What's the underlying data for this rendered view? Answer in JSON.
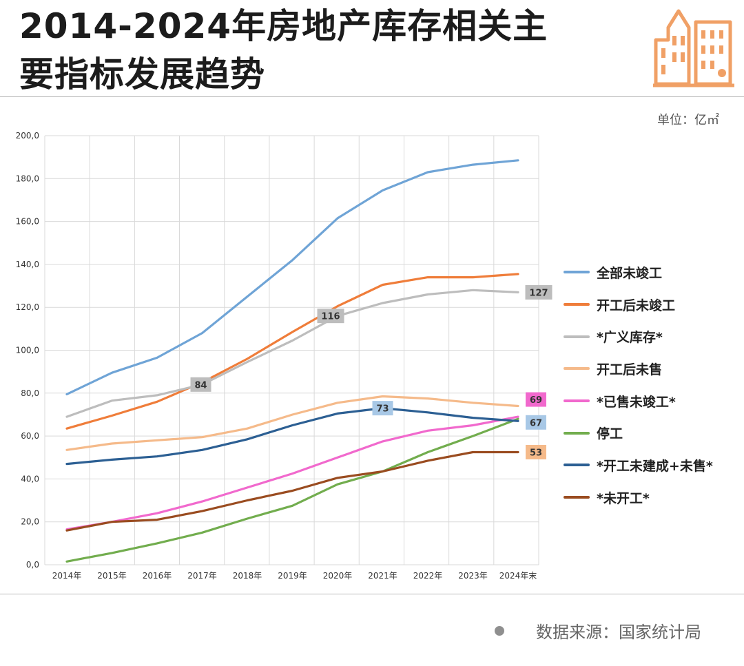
{
  "header": {
    "title_line1": "2014-2024年房地产库存相关主",
    "title_line2": "要指标发展趋势",
    "unit_label": "单位：亿㎡"
  },
  "footer": {
    "source_label": "数据来源：国家统计局"
  },
  "icons": {
    "logo": "building-icon",
    "source_bullet": "dot-icon"
  },
  "colors": {
    "logo": "#f0a066"
  },
  "chart_data": {
    "type": "line",
    "categories": [
      "2014年",
      "2015年",
      "2016年",
      "2017年",
      "2018年",
      "2019年",
      "2020年",
      "2021年",
      "2022年",
      "2023年",
      "2024年末"
    ],
    "y_tick_labels": [
      "0,0",
      "20,0",
      "40,0",
      "60,0",
      "80,0",
      "100,0",
      "120,0",
      "140,0",
      "160,0",
      "180,0",
      "200,0"
    ],
    "ylim": [
      0,
      200
    ],
    "grid": true,
    "legend_position": "right",
    "series": [
      {
        "name": "全部未竣工",
        "color": "#6fa4d6",
        "values": [
          79.5,
          89.5,
          96.5,
          108,
          125,
          142,
          161.5,
          174.5,
          183,
          186.5,
          188.5
        ]
      },
      {
        "name": "开工后未竣工",
        "color": "#ef7d3a",
        "values": [
          63.5,
          69.5,
          76,
          85,
          96,
          108.5,
          120.5,
          130.5,
          134,
          134,
          135.5
        ]
      },
      {
        "name": "*广义库存*",
        "color": "#bdbdbd",
        "values": [
          69,
          76.5,
          79,
          84,
          94.5,
          104.5,
          116,
          122,
          126,
          128,
          127
        ]
      },
      {
        "name": "开工后未售",
        "color": "#f5ba8a",
        "values": [
          53.5,
          56.5,
          58,
          59.5,
          63.5,
          70,
          75.5,
          78.5,
          77.5,
          75.5,
          74
        ]
      },
      {
        "name": "*已售未竣工*",
        "color": "#f169cd",
        "values": [
          16.5,
          20,
          24,
          29.5,
          36,
          42.5,
          50,
          57.5,
          62.5,
          65,
          69
        ]
      },
      {
        "name": "停工",
        "color": "#72ad4e",
        "values": [
          1.5,
          5.5,
          10,
          15,
          21.5,
          27.5,
          37.5,
          43.5,
          52.5,
          60,
          68
        ]
      },
      {
        "name": "*开工未建成+未售*",
        "color": "#2c5f93",
        "values": [
          47,
          49,
          50.5,
          53.5,
          58.5,
          65,
          70.5,
          73,
          71,
          68.5,
          67
        ]
      },
      {
        "name": "*未开工*",
        "color": "#9a4c20",
        "values": [
          16,
          20,
          21,
          25,
          30,
          34.5,
          40.5,
          43.5,
          48.5,
          52.5,
          52.5
        ]
      }
    ],
    "annotations": [
      {
        "series": 2,
        "index": 3,
        "text": "84",
        "bg": "#bdbdbd",
        "dx": -2,
        "dy": 0
      },
      {
        "series": 2,
        "index": 6,
        "text": "116",
        "bg": "#bdbdbd",
        "dx": -10,
        "dy": 0
      },
      {
        "series": 2,
        "index": 10,
        "text": "127",
        "bg": "#bdbdbd",
        "dx": 30,
        "dy": 0
      },
      {
        "series": 6,
        "index": 7,
        "text": "73",
        "bg": "#a8c8e6",
        "dx": 0,
        "dy": 0
      },
      {
        "series": 4,
        "index": 10,
        "text": "69",
        "bg": "#f169cd",
        "dx": 26,
        "dy": -25
      },
      {
        "series": 6,
        "index": 10,
        "text": "67",
        "bg": "#a8c8e6",
        "dx": 26,
        "dy": 2
      },
      {
        "series": 7,
        "index": 10,
        "text": "53",
        "bg": "#f5ba8a",
        "dx": 26,
        "dy": 0
      }
    ]
  }
}
